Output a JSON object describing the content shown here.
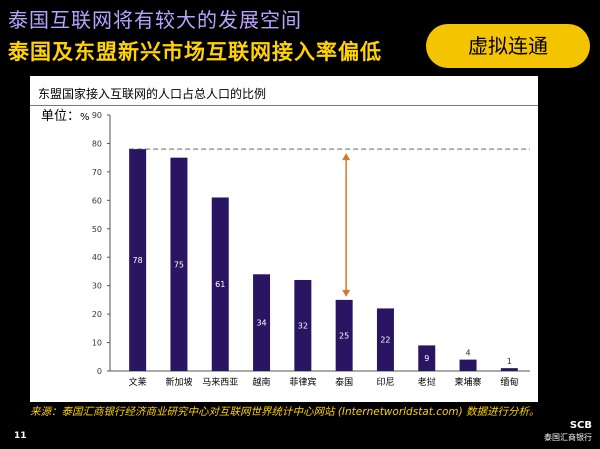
{
  "slide": {
    "title_line1": "泰国互联网将有较大的发展空间",
    "title_line2": "泰国及东盟新兴市场互联网接入率偏低",
    "badge": "虚拟连通",
    "source": "来源：泰国汇商银行经济商业研究中心对互联网世界统计中心网站 (Internetworldstat.com) 数据进行分析。",
    "page_number": "11",
    "logo_abbr": "SCB",
    "logo_name": "泰国汇商银行"
  },
  "colors": {
    "bar": "#2a1563",
    "dashed_line": "#999999",
    "arrow": "#d4782a",
    "title1": "#b9a3ff",
    "title2": "#ffd200",
    "badge": "#f5c400"
  },
  "chart_data": {
    "type": "bar",
    "title": "东盟国家接入互联网的人口占总人口的比例",
    "ylabel": "单位：",
    "ylabel_unit": "%",
    "categories": [
      "文莱",
      "新加坡",
      "马来西亚",
      "越南",
      "菲律宾",
      "泰国",
      "印尼",
      "老挝",
      "柬埔寨",
      "缅甸"
    ],
    "values": [
      78,
      75,
      61,
      34,
      32,
      25,
      22,
      9,
      4,
      1
    ],
    "ylim": [
      0,
      90
    ],
    "yticks": [
      0,
      10,
      20,
      30,
      40,
      50,
      60,
      70,
      80,
      90
    ],
    "reference_line": 78,
    "annotation_arrow": {
      "category": "泰国",
      "from": 25,
      "to": 78
    },
    "grid": false,
    "legend": "none"
  }
}
